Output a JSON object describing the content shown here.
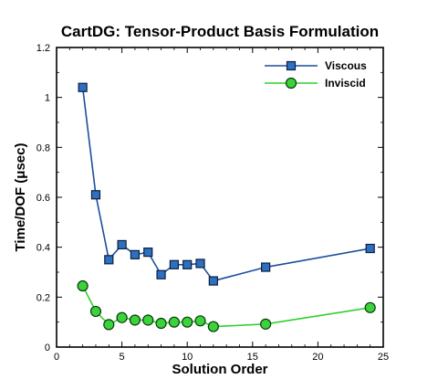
{
  "chart_data": {
    "type": "line",
    "title": "CartDG: Tensor-Product Basis Formulation",
    "xlabel": "Solution Order",
    "ylabel": "Time/DOF (μsec)",
    "xlim": [
      0,
      25
    ],
    "ylim": [
      0,
      1.2
    ],
    "xticks": [
      0,
      5,
      10,
      15,
      20,
      25
    ],
    "xtick_labels": [
      "0",
      "5",
      "10",
      "15",
      "20",
      "25"
    ],
    "yticks": [
      0,
      0.2,
      0.4,
      0.6,
      0.8,
      1,
      1.2
    ],
    "ytick_labels": [
      "0",
      "0.2",
      "0.4",
      "0.6",
      "0.8",
      "1",
      "1.2"
    ],
    "grid": false,
    "legend_position": "top-right",
    "series": [
      {
        "name": "Viscous",
        "marker": "square",
        "line_color": "#1b4f9c",
        "marker_fill": "#2f6fc0",
        "marker_stroke": "#0b1f3f",
        "x": [
          2,
          3,
          4,
          5,
          6,
          7,
          8,
          9,
          10,
          11,
          12,
          16,
          24
        ],
        "y": [
          1.04,
          0.61,
          0.35,
          0.41,
          0.37,
          0.38,
          0.29,
          0.33,
          0.33,
          0.335,
          0.265,
          0.32,
          0.395
        ]
      },
      {
        "name": "Inviscid",
        "marker": "circle",
        "line_color": "#2fd12f",
        "marker_fill": "#3cd23c",
        "marker_stroke": "#0a3a0a",
        "x": [
          2,
          3,
          4,
          5,
          6,
          7,
          8,
          9,
          10,
          11,
          12,
          16,
          24
        ],
        "y": [
          0.245,
          0.143,
          0.09,
          0.118,
          0.108,
          0.108,
          0.095,
          0.1,
          0.1,
          0.105,
          0.082,
          0.092,
          0.158
        ]
      }
    ]
  }
}
